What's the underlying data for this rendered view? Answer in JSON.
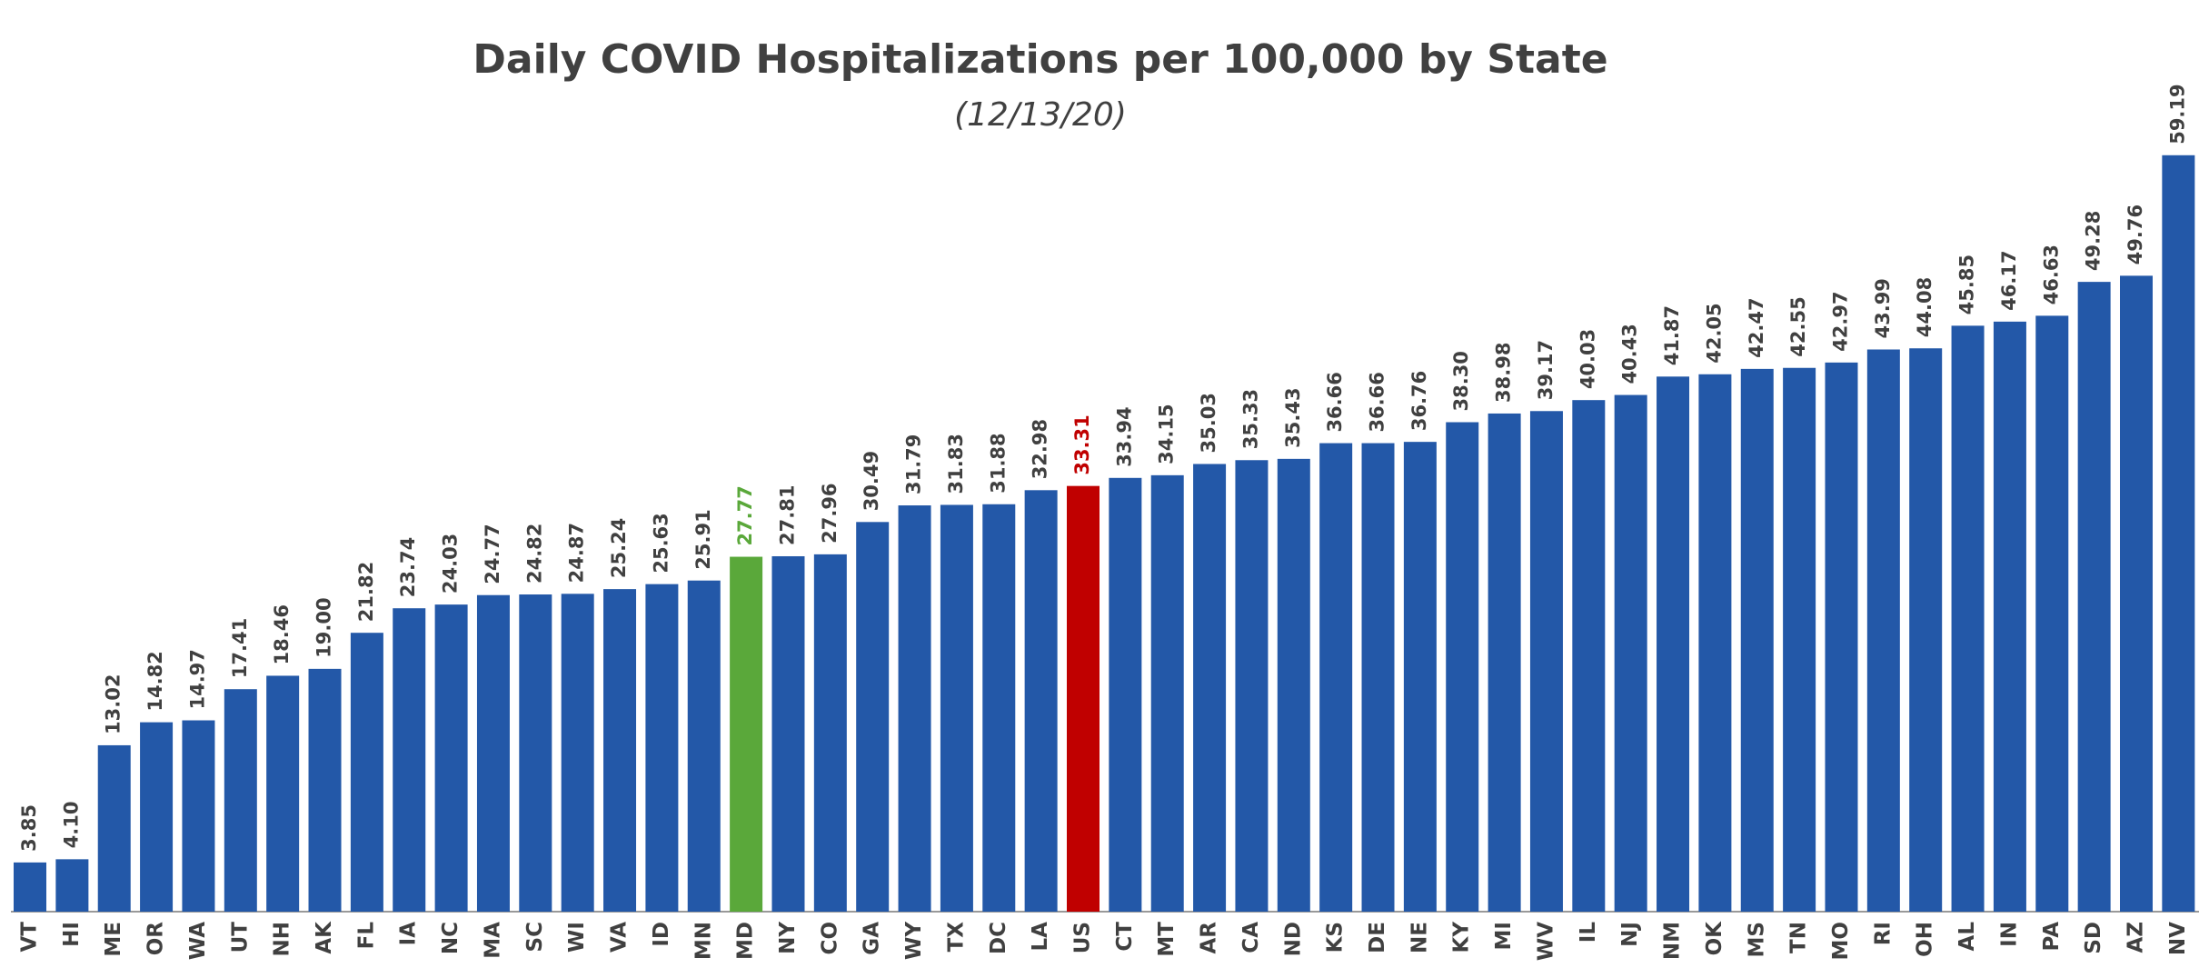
{
  "chart_data": {
    "type": "bar",
    "title": "Daily COVID Hospitalizations per 100,000 by State",
    "subtitle": "(12/13/20)",
    "categories": [
      "VT",
      "HI",
      "ME",
      "OR",
      "WA",
      "UT",
      "NH",
      "AK",
      "FL",
      "IA",
      "NC",
      "MA",
      "SC",
      "WI",
      "VA",
      "ID",
      "MN",
      "MD",
      "NY",
      "CO",
      "GA",
      "WY",
      "TX",
      "DC",
      "LA",
      "US",
      "CT",
      "MT",
      "AR",
      "CA",
      "ND",
      "KS",
      "DE",
      "NE",
      "KY",
      "MI",
      "WV",
      "IL",
      "NJ",
      "NM",
      "OK",
      "MS",
      "TN",
      "MO",
      "RI",
      "OH",
      "AL",
      "IN",
      "PA",
      "SD",
      "AZ",
      "NV"
    ],
    "values": [
      3.85,
      4.1,
      13.02,
      14.82,
      14.97,
      17.41,
      18.46,
      19,
      21.82,
      23.74,
      24.03,
      24.77,
      24.82,
      24.87,
      25.24,
      25.63,
      25.91,
      27.77,
      27.81,
      27.96,
      30.49,
      31.79,
      31.83,
      31.88,
      32.98,
      33.31,
      33.94,
      34.15,
      35.03,
      35.33,
      35.43,
      36.66,
      36.66,
      36.76,
      38.3,
      38.98,
      39.17,
      40.03,
      40.43,
      41.87,
      42.05,
      42.47,
      42.55,
      42.97,
      43.99,
      44.08,
      45.85,
      46.17,
      46.63,
      49.28,
      49.76,
      59.19
    ],
    "value_labels": [
      "3.85",
      "4.10",
      "13.02",
      "14.82",
      "14.97",
      "17.41",
      "18.46",
      "19.00",
      "21.82",
      "23.74",
      "24.03",
      "24.77",
      "24.82",
      "24.87",
      "25.24",
      "25.63",
      "25.91",
      "27.77",
      "27.81",
      "27.96",
      "30.49",
      "31.79",
      "31.83",
      "31.88",
      "32.98",
      "33.31",
      "33.94",
      "34.15",
      "35.03",
      "35.33",
      "35.43",
      "36.66",
      "36.66",
      "36.76",
      "38.30",
      "38.98",
      "39.17",
      "40.03",
      "40.43",
      "41.87",
      "42.05",
      "42.47",
      "42.55",
      "42.97",
      "43.99",
      "44.08",
      "45.85",
      "46.17",
      "46.63",
      "49.28",
      "49.76",
      "59.19"
    ],
    "color": "#2358a8",
    "highlights": {
      "MD": "#5aa83a",
      "US": "#c00000"
    }
  }
}
